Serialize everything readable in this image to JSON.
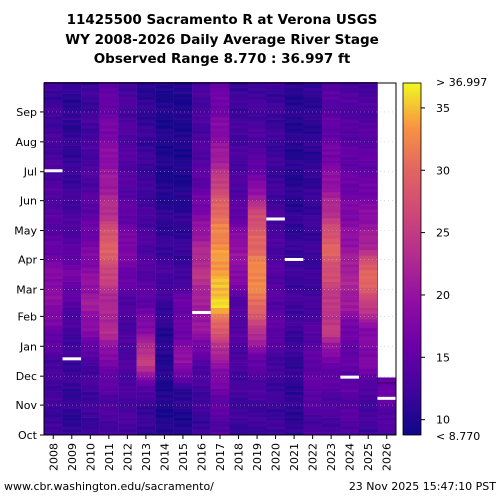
{
  "title_lines": [
    "11425500 Sacramento R at Verona USGS",
    "WY 2008-2026 Daily Average River Stage",
    "Observed Range 8.770 : 36.997 ft"
  ],
  "footer": {
    "url": "www.cbr.washington.edu/sacramento/",
    "timestamp": "23 Nov 2025 15:47:10 PST"
  },
  "colors": {
    "background": "#ffffff",
    "gridline": "#bbbbbb",
    "missing": "#ffffff",
    "sentinel_marker": "#ffffff"
  },
  "chart_data": {
    "type": "heatmap",
    "title": "11425500 Sacramento R at Verona USGS WY 2008-2026 Daily Average River Stage",
    "subtitle": "Observed Range 8.770 : 36.997 ft",
    "x_categories": [
      "2008",
      "2009",
      "2010",
      "2011",
      "2012",
      "2013",
      "2014",
      "2015",
      "2016",
      "2017",
      "2018",
      "2019",
      "2020",
      "2021",
      "2022",
      "2023",
      "2024",
      "2025",
      "2026"
    ],
    "y_ticks": [
      "Oct",
      "Nov",
      "Dec",
      "Jan",
      "Feb",
      "Mar",
      "Apr",
      "May",
      "Jun",
      "Jul",
      "Aug",
      "Sep"
    ],
    "colorbar": {
      "min": 8.77,
      "max": 36.997,
      "ticks": [
        10,
        15,
        20,
        25,
        30,
        35
      ],
      "min_label": "< 8.770",
      "max_label": "> 36.997",
      "colormap": "plasma"
    },
    "grid": true,
    "series": [
      {
        "water_year": "2008",
        "monthly_stage": [
          12,
          12.5,
          13,
          16,
          19,
          18.5,
          15,
          14,
          13.5,
          13,
          12.5,
          12
        ]
      },
      {
        "water_year": "2009",
        "monthly_stage": [
          11,
          11.5,
          12,
          12.5,
          14,
          17,
          14,
          13,
          12,
          11.5,
          11,
          11
        ]
      },
      {
        "water_year": "2010",
        "monthly_stage": [
          12,
          12.5,
          13,
          18,
          21,
          19,
          17,
          15,
          13.5,
          13,
          12.5,
          12
        ]
      },
      {
        "water_year": "2011",
        "monthly_stage": [
          13,
          14,
          17,
          23,
          22,
          26,
          30,
          24,
          21,
          19,
          17,
          15
        ]
      },
      {
        "water_year": "2012",
        "monthly_stage": [
          13,
          13,
          13.5,
          13,
          13.5,
          16,
          18,
          15,
          14,
          14,
          13.5,
          13
        ]
      },
      {
        "water_year": "2013",
        "monthly_stage": [
          11.5,
          13,
          26,
          19,
          15,
          14,
          13.5,
          13,
          12,
          12,
          11.5,
          11
        ]
      },
      {
        "water_year": "2014",
        "monthly_stage": [
          10,
          10,
          10.5,
          10.5,
          12,
          13,
          11.5,
          11,
          10,
          10,
          10,
          10
        ]
      },
      {
        "water_year": "2015",
        "monthly_stage": [
          10,
          11,
          20,
          16,
          16,
          12,
          11.5,
          11,
          10,
          10,
          10,
          10
        ]
      },
      {
        "water_year": "2016",
        "monthly_stage": [
          12,
          12.5,
          14,
          20,
          21,
          24,
          22,
          18,
          15,
          14,
          13,
          13
        ]
      },
      {
        "water_year": "2017",
        "monthly_stage": [
          14,
          16,
          20,
          28,
          36,
          34,
          33,
          31,
          26,
          21,
          18,
          16
        ]
      },
      {
        "water_year": "2018",
        "monthly_stage": [
          12,
          12.5,
          13,
          14,
          13.5,
          19,
          20,
          15,
          13.5,
          13,
          12.5,
          12
        ]
      },
      {
        "water_year": "2019",
        "monthly_stage": [
          12,
          13,
          15,
          24,
          31,
          33,
          30,
          27,
          18,
          14,
          13,
          12.5
        ]
      },
      {
        "water_year": "2020",
        "monthly_stage": [
          12,
          12,
          12.5,
          15,
          14,
          14,
          13,
          13,
          12,
          12,
          12,
          12
        ]
      },
      {
        "water_year": "2021",
        "monthly_stage": [
          11,
          11,
          11.5,
          12,
          12.5,
          12,
          11.5,
          11,
          10.5,
          10.5,
          10.5,
          10.5
        ]
      },
      {
        "water_year": "2022",
        "monthly_stage": [
          13,
          15,
          15,
          14,
          12.5,
          12,
          12,
          12,
          11.5,
          11,
          11,
          11
        ]
      },
      {
        "water_year": "2023",
        "monthly_stage": [
          13,
          14,
          16,
          25,
          24,
          27,
          30,
          24,
          20,
          17,
          15,
          14
        ]
      },
      {
        "water_year": "2024",
        "monthly_stage": [
          14,
          14.5,
          15,
          16,
          21,
          22,
          20,
          18,
          16,
          15,
          14,
          13.5
        ]
      },
      {
        "water_year": "2025",
        "monthly_stage": [
          12.5,
          13,
          18,
          18,
          26,
          31,
          22,
          19,
          16,
          15,
          14,
          13
        ]
      },
      {
        "water_year": "2026",
        "monthly_stage": [
          13.5,
          16,
          null,
          null,
          null,
          null,
          null,
          null,
          null,
          null,
          null,
          null
        ]
      }
    ]
  }
}
